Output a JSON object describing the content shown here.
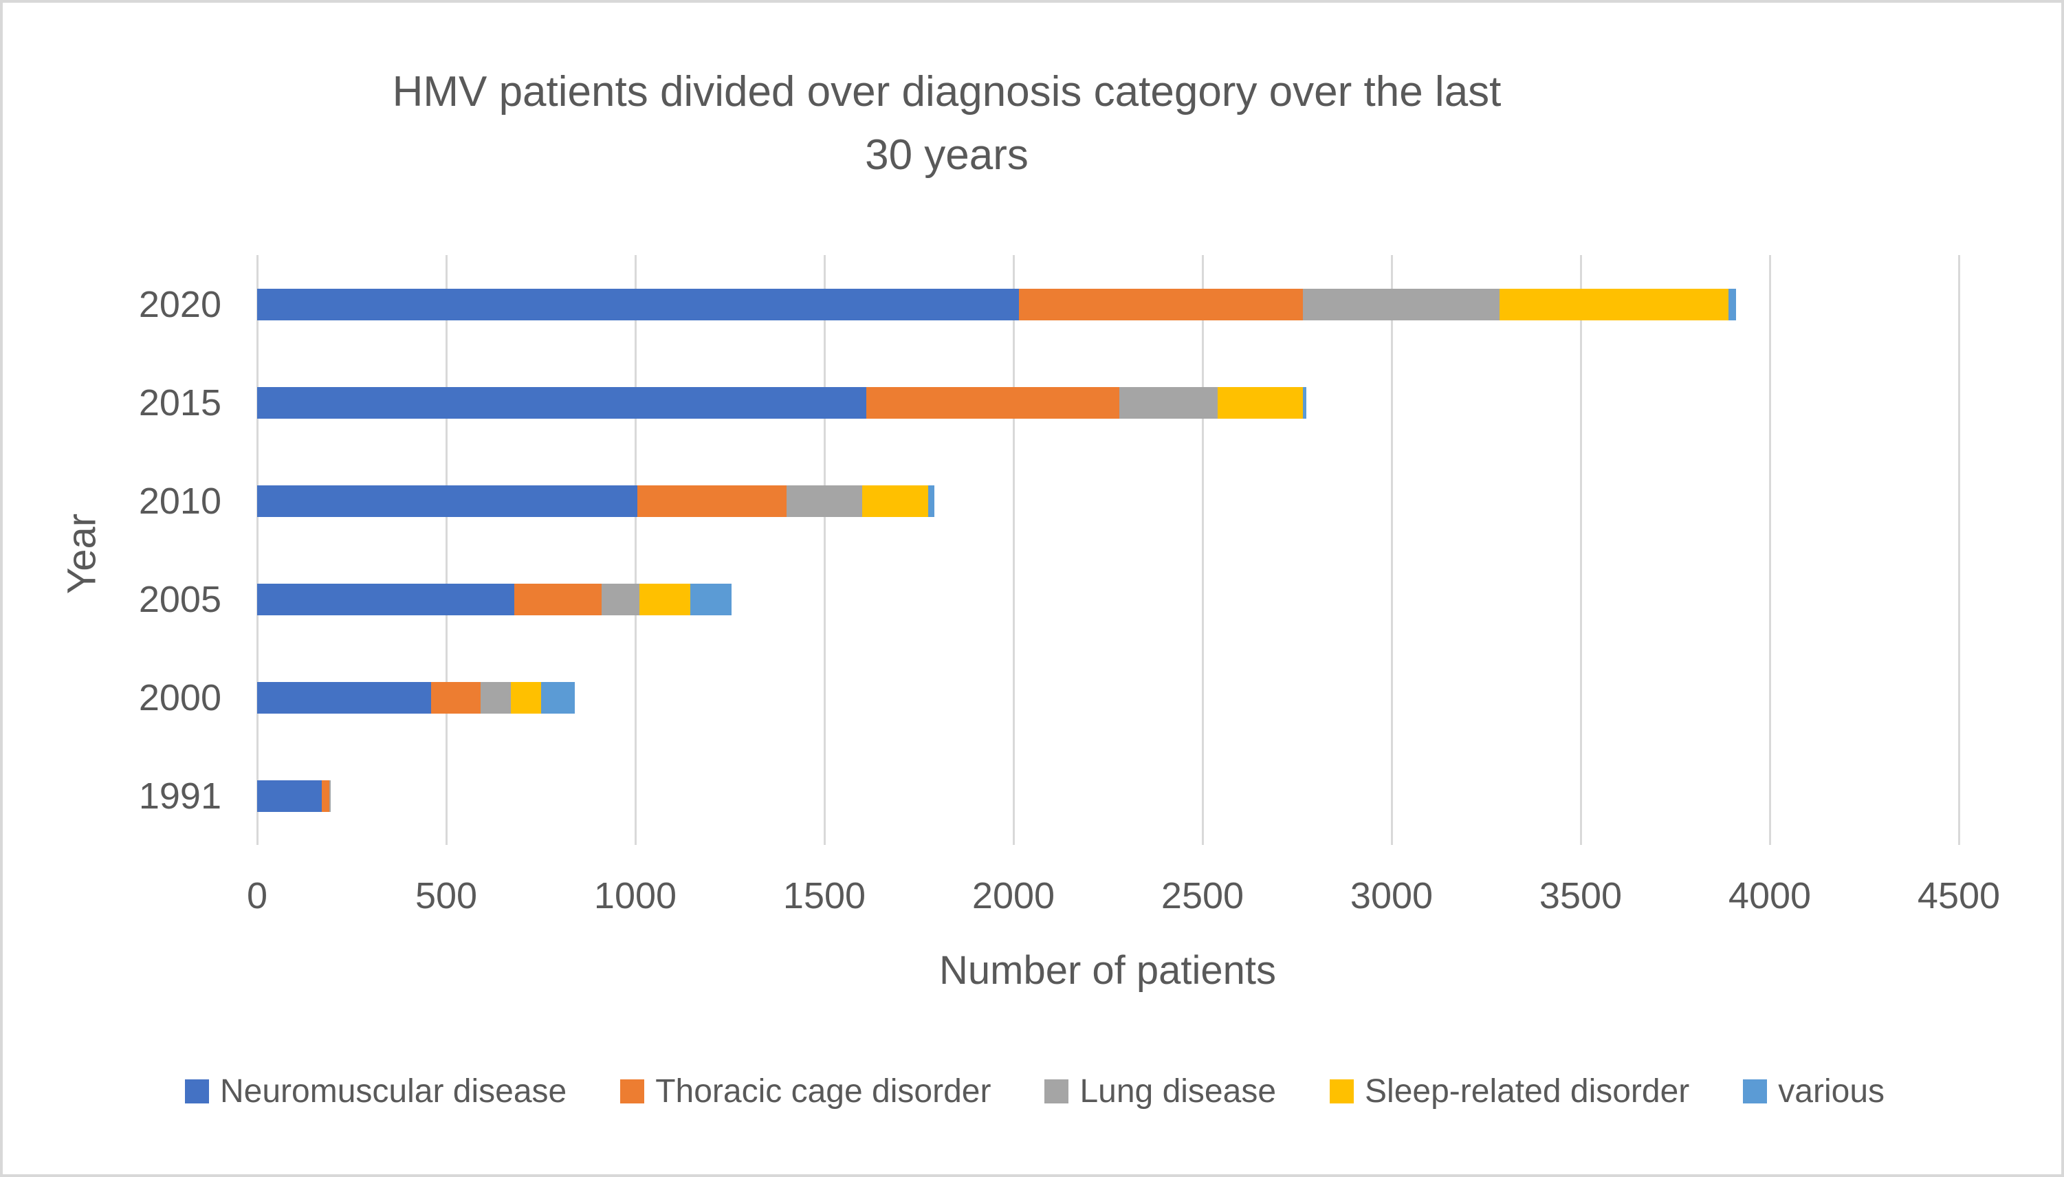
{
  "chart_data": {
    "type": "bar",
    "orientation": "horizontal",
    "stacked": true,
    "title": "HMV patients divided over diagnosis category over the last 30 years",
    "title_lines": [
      "HMV patients divided over diagnosis category over the last",
      "30 years"
    ],
    "xlabel": "Number of patients",
    "ylabel": "Year",
    "categories": [
      "2020",
      "2015",
      "2010",
      "2005",
      "2000",
      "1991"
    ],
    "series": [
      {
        "name": "Neuromuscular disease",
        "color": "#4472C4",
        "values": [
          2015,
          1610,
          1005,
          680,
          460,
          170
        ]
      },
      {
        "name": "Thoracic cage disorder",
        "color": "#ED7D31",
        "values": [
          750,
          670,
          395,
          230,
          130,
          20
        ]
      },
      {
        "name": "Lung disease",
        "color": "#A5A5A5",
        "values": [
          520,
          260,
          200,
          100,
          80,
          5
        ]
      },
      {
        "name": "Sleep-related disorder",
        "color": "#FFC000",
        "values": [
          605,
          225,
          175,
          135,
          80,
          0
        ]
      },
      {
        "name": "various",
        "color": "#5B9BD5",
        "values": [
          20,
          10,
          15,
          110,
          90,
          0
        ]
      }
    ],
    "totals": [
      3910,
      2775,
      1790,
      1255,
      840,
      195
    ],
    "xlim": [
      0,
      4500
    ],
    "xticks": [
      0,
      500,
      1000,
      1500,
      2000,
      2500,
      3000,
      3500,
      4000,
      4500
    ],
    "grid": "vertical-only",
    "legend_position": "bottom",
    "colors": {
      "text": "#595959",
      "gridline": "#D9D9D9",
      "background": "#FFFFFF",
      "border": "#D8D8D8"
    }
  }
}
